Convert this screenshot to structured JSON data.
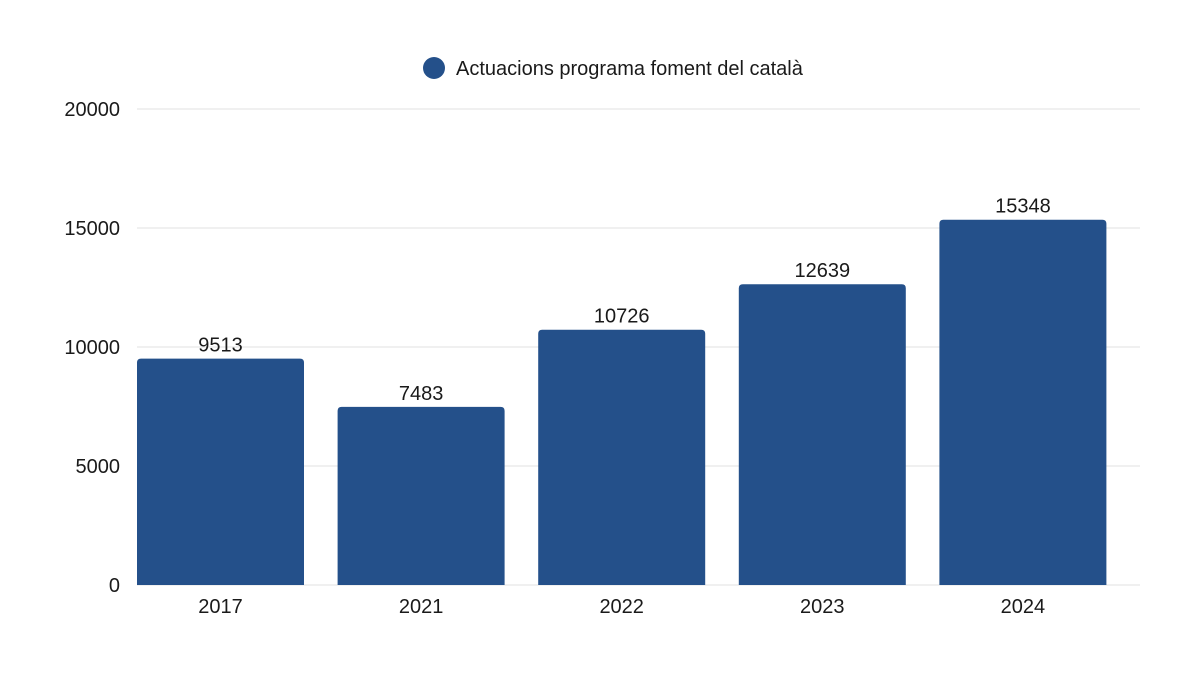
{
  "chart_data": {
    "type": "bar",
    "categories": [
      "2017",
      "2021",
      "2022",
      "2023",
      "2024"
    ],
    "series": [
      {
        "name": "Actuacions programa foment del català",
        "values": [
          9513,
          7483,
          10726,
          12639,
          15348
        ],
        "color": "#24508A"
      }
    ],
    "ylim": [
      0,
      20000
    ],
    "yticks": [
      "0",
      "5000",
      "10000",
      "15000",
      "20000"
    ],
    "grid": true,
    "legend_position": "top-center",
    "data_labels": true,
    "title": "",
    "xlabel": "",
    "ylabel": ""
  }
}
